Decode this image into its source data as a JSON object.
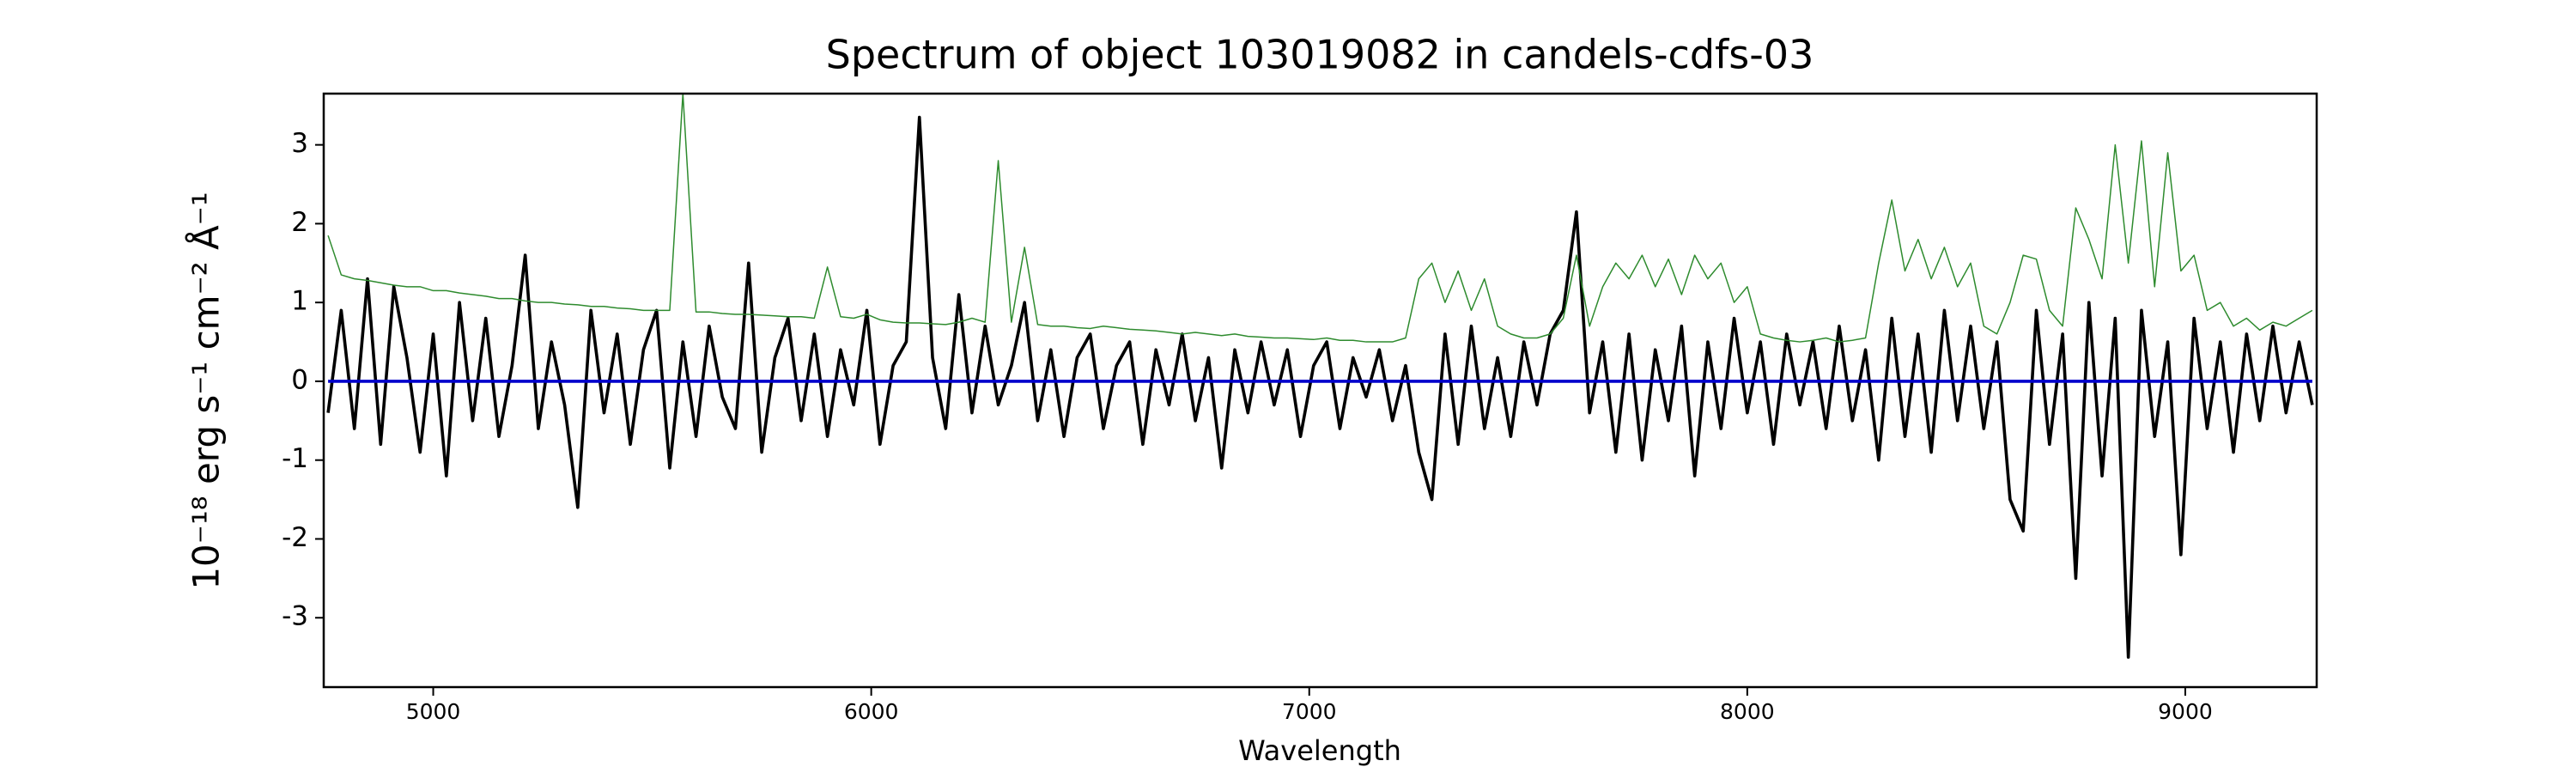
{
  "chart_data": {
    "type": "line",
    "title": "Spectrum of object 103019082 in candels-cdfs-03",
    "x_label": "Wavelength",
    "y_label": "10⁻¹⁸ erg s⁻¹ cm⁻² Å⁻¹",
    "x": [
      4760,
      4790,
      4820,
      4850,
      4880,
      4910,
      4940,
      4970,
      5000,
      5030,
      5060,
      5090,
      5120,
      5150,
      5180,
      5210,
      5240,
      5270,
      5300,
      5330,
      5360,
      5390,
      5420,
      5450,
      5480,
      5510,
      5540,
      5570,
      5600,
      5630,
      5660,
      5690,
      5720,
      5750,
      5780,
      5810,
      5840,
      5870,
      5900,
      5930,
      5960,
      5990,
      6020,
      6050,
      6080,
      6110,
      6140,
      6170,
      6200,
      6230,
      6260,
      6290,
      6320,
      6350,
      6380,
      6410,
      6440,
      6470,
      6500,
      6530,
      6560,
      6590,
      6620,
      6650,
      6680,
      6710,
      6740,
      6770,
      6800,
      6830,
      6860,
      6890,
      6920,
      6950,
      6980,
      7010,
      7040,
      7070,
      7100,
      7130,
      7160,
      7190,
      7220,
      7250,
      7280,
      7310,
      7340,
      7370,
      7400,
      7430,
      7460,
      7490,
      7520,
      7550,
      7580,
      7610,
      7640,
      7670,
      7700,
      7730,
      7760,
      7790,
      7820,
      7850,
      7880,
      7910,
      7940,
      7970,
      8000,
      8030,
      8060,
      8090,
      8120,
      8150,
      8180,
      8210,
      8240,
      8270,
      8300,
      8330,
      8360,
      8390,
      8420,
      8450,
      8480,
      8510,
      8540,
      8570,
      8600,
      8630,
      8660,
      8690,
      8720,
      8750,
      8780,
      8810,
      8840,
      8870,
      8900,
      8930,
      8960,
      8990,
      9020,
      9050,
      9080,
      9110,
      9140,
      9170,
      9200,
      9230,
      9260,
      9290
    ],
    "series": [
      {
        "color": "#000000",
        "values": [
          -0.4,
          0.9,
          -0.6,
          1.3,
          -0.8,
          1.2,
          0.3,
          -0.9,
          0.6,
          -1.2,
          1.0,
          -0.5,
          0.8,
          -0.7,
          0.2,
          1.6,
          -0.6,
          0.5,
          -0.3,
          -1.6,
          0.9,
          -0.4,
          0.6,
          -0.8,
          0.4,
          0.9,
          -1.1,
          0.5,
          -0.7,
          0.7,
          -0.2,
          -0.6,
          1.5,
          -0.9,
          0.3,
          0.8,
          -0.5,
          0.6,
          -0.7,
          0.4,
          -0.3,
          0.9,
          -0.8,
          0.2,
          0.5,
          3.35,
          0.3,
          -0.6,
          1.1,
          -0.4,
          0.7,
          -0.3,
          0.2,
          1.0,
          -0.5,
          0.4,
          -0.7,
          0.3,
          0.6,
          -0.6,
          0.2,
          0.5,
          -0.8,
          0.4,
          -0.3,
          0.6,
          -0.5,
          0.3,
          -1.1,
          0.4,
          -0.4,
          0.5,
          -0.3,
          0.4,
          -0.7,
          0.2,
          0.5,
          -0.6,
          0.3,
          -0.2,
          0.4,
          -0.5,
          0.2,
          -0.9,
          -1.5,
          0.6,
          -0.8,
          0.7,
          -0.6,
          0.3,
          -0.7,
          0.5,
          -0.3,
          0.6,
          0.9,
          2.15,
          -0.4,
          0.5,
          -0.9,
          0.6,
          -1.0,
          0.4,
          -0.5,
          0.7,
          -1.2,
          0.5,
          -0.6,
          0.8,
          -0.4,
          0.5,
          -0.8,
          0.6,
          -0.3,
          0.5,
          -0.6,
          0.7,
          -0.5,
          0.4,
          -1.0,
          0.8,
          -0.7,
          0.6,
          -0.9,
          0.9,
          -0.5,
          0.7,
          -0.6,
          0.5,
          -1.5,
          -1.9,
          0.9,
          -0.8,
          0.6,
          -2.5,
          1.0,
          -1.2,
          0.8,
          -3.5,
          0.9,
          -0.7,
          0.5,
          -2.2,
          0.8,
          -0.6,
          0.5,
          -0.9,
          0.6,
          -0.5,
          0.7,
          -0.4,
          0.5,
          -0.3
        ]
      },
      {
        "color": "#2e8b2e",
        "values": [
          1.85,
          1.35,
          1.3,
          1.28,
          1.25,
          1.22,
          1.2,
          1.2,
          1.15,
          1.15,
          1.12,
          1.1,
          1.08,
          1.05,
          1.05,
          1.02,
          1.0,
          1.0,
          0.98,
          0.97,
          0.95,
          0.95,
          0.93,
          0.92,
          0.9,
          0.9,
          0.9,
          3.65,
          0.88,
          0.88,
          0.86,
          0.85,
          0.85,
          0.84,
          0.83,
          0.82,
          0.82,
          0.8,
          1.45,
          0.82,
          0.8,
          0.85,
          0.78,
          0.75,
          0.74,
          0.74,
          0.73,
          0.72,
          0.75,
          0.8,
          0.75,
          2.8,
          0.75,
          1.7,
          0.72,
          0.7,
          0.7,
          0.68,
          0.67,
          0.7,
          0.68,
          0.66,
          0.65,
          0.64,
          0.62,
          0.6,
          0.62,
          0.6,
          0.58,
          0.6,
          0.57,
          0.56,
          0.55,
          0.55,
          0.54,
          0.53,
          0.55,
          0.52,
          0.52,
          0.5,
          0.5,
          0.5,
          0.55,
          1.3,
          1.5,
          1.0,
          1.4,
          0.9,
          1.3,
          0.7,
          0.6,
          0.55,
          0.55,
          0.6,
          0.8,
          1.6,
          0.7,
          1.2,
          1.5,
          1.3,
          1.6,
          1.2,
          1.55,
          1.1,
          1.6,
          1.3,
          1.5,
          1.0,
          1.2,
          0.6,
          0.55,
          0.52,
          0.5,
          0.52,
          0.55,
          0.5,
          0.52,
          0.55,
          1.5,
          2.3,
          1.4,
          1.8,
          1.3,
          1.7,
          1.2,
          1.5,
          0.7,
          0.6,
          1.0,
          1.6,
          1.55,
          0.9,
          0.7,
          2.2,
          1.8,
          1.3,
          3.0,
          1.5,
          3.05,
          1.2,
          2.9,
          1.4,
          1.6,
          0.9,
          1.0,
          0.7,
          0.8,
          0.65,
          0.75,
          0.7,
          0.8,
          0.9
        ]
      },
      {
        "color": "#0000cc",
        "values": [
          0,
          0,
          0,
          0,
          0,
          0,
          0,
          0,
          0,
          0,
          0,
          0,
          0,
          0,
          0,
          0,
          0,
          0,
          0,
          0,
          0,
          0,
          0,
          0,
          0,
          0,
          0,
          0,
          0,
          0,
          0,
          0,
          0,
          0,
          0,
          0,
          0,
          0,
          0,
          0,
          0,
          0,
          0,
          0,
          0,
          0,
          0,
          0,
          0,
          0,
          0,
          0,
          0,
          0,
          0,
          0,
          0,
          0,
          0,
          0,
          0,
          0,
          0,
          0,
          0,
          0,
          0,
          0,
          0,
          0,
          0,
          0,
          0,
          0,
          0,
          0,
          0,
          0,
          0,
          0,
          0,
          0,
          0,
          0,
          0,
          0,
          0,
          0,
          0,
          0,
          0,
          0,
          0,
          0,
          0,
          0,
          0,
          0,
          0,
          0,
          0,
          0,
          0,
          0,
          0,
          0,
          0,
          0,
          0,
          0,
          0,
          0,
          0,
          0,
          0,
          0,
          0,
          0,
          0,
          0,
          0,
          0,
          0,
          0,
          0,
          0,
          0,
          0,
          0,
          0,
          0,
          0,
          0,
          0,
          0,
          0,
          0,
          0,
          0,
          0,
          0,
          0,
          0,
          0,
          0,
          0,
          0,
          0,
          0,
          0,
          0,
          0
        ]
      }
    ],
    "xlim": [
      4750,
      9300
    ],
    "ylim": [
      -3.88,
      3.65
    ],
    "xticks": [
      5000,
      6000,
      7000,
      8000,
      9000
    ],
    "yticks": [
      -3,
      -2,
      -1,
      0,
      1,
      2,
      3
    ],
    "grid": false
  }
}
